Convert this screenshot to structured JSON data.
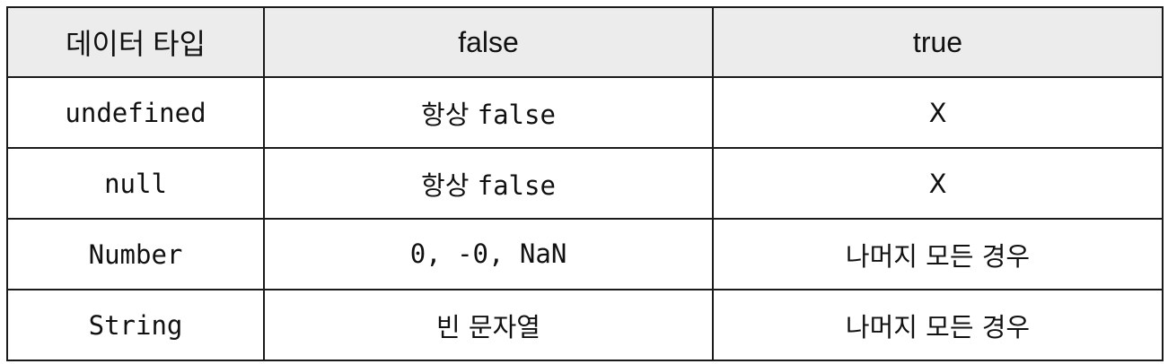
{
  "table": {
    "headers": [
      "데이터 타입",
      "false",
      "true"
    ],
    "rows": [
      {
        "type": "undefined",
        "false_prefix": "항상 ",
        "false_code": "false",
        "true_value": "X"
      },
      {
        "type": "null",
        "false_prefix": "항상 ",
        "false_code": "false",
        "true_value": "X"
      },
      {
        "type": "Number",
        "false_prefix": "",
        "false_code": "0, -0, NaN",
        "true_value": "나머지 모든 경우"
      },
      {
        "type": "String",
        "false_prefix": "빈 문자열",
        "false_code": "",
        "true_value": "나머지 모든 경우"
      }
    ]
  },
  "colors": {
    "header_bg": "#ececec",
    "border": "#1a1a1a",
    "text": "#111111"
  }
}
